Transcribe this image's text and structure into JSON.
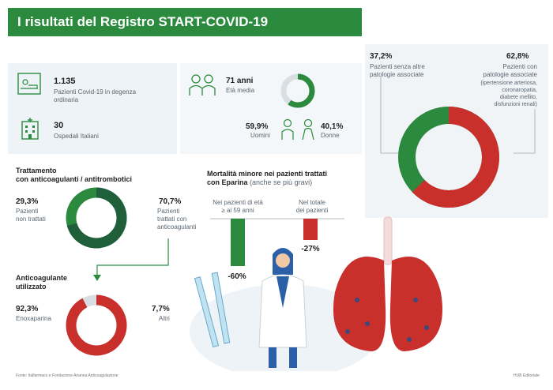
{
  "header": {
    "title": "I risultati del Registro START-COVID-19"
  },
  "stats": {
    "patients_value": "1.135",
    "patients_label_1": "Pazienti Covid-19 in degenza",
    "patients_label_2": "ordinaria",
    "hospitals_value": "30",
    "hospitals_label": "Ospedali Italiani",
    "age_value": "71 anni",
    "age_label": "Età media",
    "men_value": "59,9%",
    "men_label": "Uomini",
    "women_value": "40,1%",
    "women_label": "Donne"
  },
  "comorbidity": {
    "left_value": "37,2%",
    "left_label_1": "Pazienti senza altre",
    "left_label_2": "patologie associate",
    "right_value": "62,8%",
    "right_label_1": "Pazienti con",
    "right_label_2": "patologie associate",
    "right_detail_1": "(ipertensione arteriosa,",
    "right_detail_2": "coronaropatia,",
    "right_detail_3": "diabete mellito,",
    "right_detail_4": "disfunzioni renali)",
    "no_pct": 37.2,
    "yes_pct": 62.8
  },
  "treatment": {
    "title_1": "Trattamento",
    "title_2": "con anticoagulanti / antitrombotici",
    "untreated_value": "29,3%",
    "untreated_label_1": "Pazienti",
    "untreated_label_2": "non trattati",
    "treated_value": "70,7%",
    "treated_label_1": "Pazienti",
    "treated_label_2": "trattati con",
    "treated_label_3": "anticoagulanti",
    "untreated_pct": 29.3,
    "treated_pct": 70.7
  },
  "anticoag": {
    "title_1": "Anticoagulante",
    "title_2": "utilizzato",
    "enox_value": "92,3%",
    "enox_label": "Enoxaparina",
    "other_value": "7,7%",
    "other_label": "Altri",
    "enox_pct": 92.3,
    "other_pct": 7.7
  },
  "mortality": {
    "title_1": "Mortalità minore nei pazienti trattati",
    "title_2": "con Eparina",
    "title_note": "(anche se più gravi)",
    "bar1_label_1": "Nei pazienti di età",
    "bar1_label_2": "≥ ai 59 anni",
    "bar1_value": "-60%",
    "bar2_label_1": "Nel totale",
    "bar2_label_2": "dei pazienti",
    "bar2_value": "-27%",
    "bar1_pct": 60,
    "bar2_pct": 27
  },
  "footer": {
    "source": "Fonte: Italfarmaco e Fondazione Arianna Anticoagulazione",
    "brand": "HUB Editoriale"
  },
  "colors": {
    "green": "#2b8a3e",
    "dark_green": "#1f5f3a",
    "red": "#c9302c",
    "gray": "#d9dee2"
  }
}
